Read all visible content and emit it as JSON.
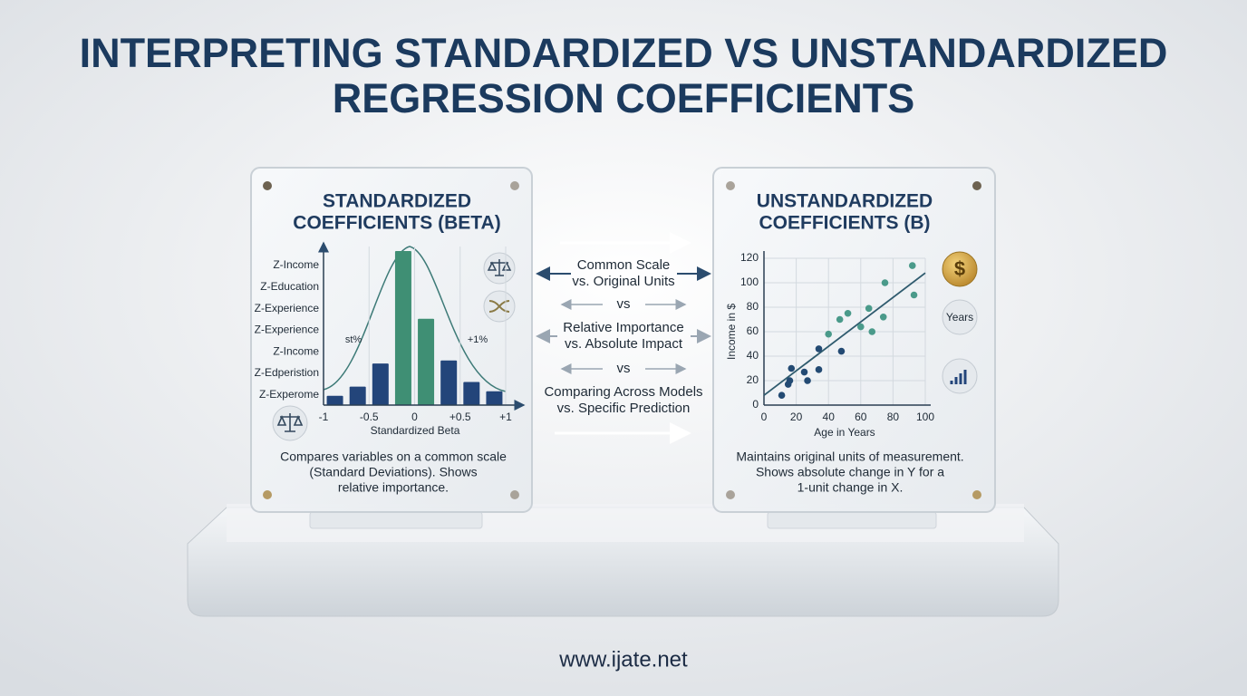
{
  "title_lines": [
    "INTERPRETING STANDARDIZED VS UNSTANDARDIZED",
    "REGRESSION COEFFICIENTS"
  ],
  "left_panel": {
    "title_lines": [
      "STANDARDIZED",
      "COEFFICIENTS (BETA)"
    ],
    "description_lines": [
      "Compares variables on a common scale",
      "(Standard Deviations). Shows",
      "relative importance."
    ],
    "chart": {
      "type": "bar",
      "y_labels": [
        "Z-Income",
        "Z-Education",
        "Z-Experience",
        "Z-Experience",
        "Z-Income",
        "Z-Edperistion",
        "Z-Experome"
      ],
      "x_label": "Standardized Beta",
      "xlim": [
        -1,
        1
      ],
      "xticks": [
        -1,
        -0.5,
        0,
        {
          "value": 0.5,
          "label": "+0.5"
        },
        {
          "value": 1,
          "label": "+1"
        }
      ],
      "x": [
        -0.875,
        -0.625,
        -0.375,
        -0.125,
        0.125,
        0.375,
        0.625,
        0.875
      ],
      "values": [
        0.06,
        0.12,
        0.27,
        1.0,
        0.56,
        0.29,
        0.15,
        0.09
      ],
      "colors": [
        "#23457a",
        "#23457a",
        "#23457a",
        "#3f8f74",
        "#3f8f74",
        "#23457a",
        "#23457a",
        "#23457a"
      ],
      "annotations": [
        "st%",
        "+1%"
      ]
    }
  },
  "right_panel": {
    "title_lines": [
      "UNSTANDARDIZED",
      "COEFFICIENTS (B)"
    ],
    "description_lines": [
      "Maintains original units of measurement.",
      "Shows absolute change in Y for a",
      "1-unit change in X."
    ],
    "icon_labels": [
      "$",
      "Years"
    ],
    "chart": {
      "type": "scatter",
      "x_label": "Age in Years",
      "y_label": "Income in $",
      "xlim": [
        0,
        100
      ],
      "ylim": [
        0,
        120
      ],
      "xticks": [
        0,
        20,
        40,
        60,
        80,
        100
      ],
      "yticks": [
        0,
        20,
        40,
        60,
        80,
        100,
        120
      ],
      "x": [
        11,
        15,
        16,
        17,
        25,
        27,
        34,
        34,
        40,
        48,
        47,
        52,
        60,
        65,
        67,
        74,
        75,
        92,
        93
      ],
      "y": [
        8,
        17,
        20,
        30,
        27,
        20,
        29,
        46,
        58,
        44,
        70,
        75,
        64,
        79,
        60,
        72,
        100,
        114,
        90
      ],
      "trendline": {
        "x": [
          0,
          100
        ],
        "y": [
          8,
          108
        ]
      }
    }
  },
  "comparisons": [
    {
      "lines": [
        "Common Scale",
        "vs. Original Units"
      ]
    },
    {
      "lines": [
        "Relative Importance",
        "vs. Absolute Impact"
      ]
    },
    {
      "lines": [
        "Comparing Across Models",
        "vs. Specific Prediction"
      ]
    }
  ],
  "separator": "vs",
  "footer": "www.ijate.net"
}
